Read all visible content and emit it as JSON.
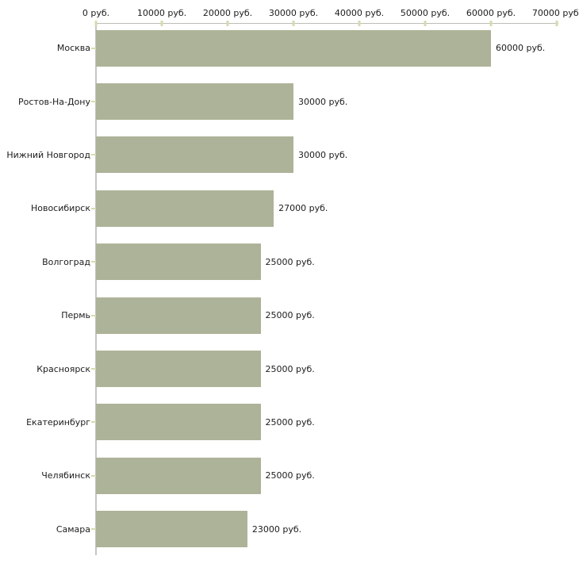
{
  "chart_data": {
    "type": "bar",
    "orientation": "horizontal",
    "title": "",
    "xlabel": "",
    "ylabel": "",
    "categories": [
      "Москва",
      "Ростов-На-Дону",
      "Нижний Новгород",
      "Новосибирск",
      "Волгоград",
      "Пермь",
      "Красноярск",
      "Екатеринбург",
      "Челябинск",
      "Самара"
    ],
    "values": [
      60000,
      30000,
      30000,
      27000,
      25000,
      25000,
      25000,
      25000,
      25000,
      23000
    ],
    "value_labels": [
      "60000 руб.",
      "30000 руб.",
      "30000 руб.",
      "27000 руб.",
      "25000 руб.",
      "25000 руб.",
      "25000 руб.",
      "25000 руб.",
      "25000 руб.",
      "23000 руб."
    ],
    "x_tick_values": [
      0,
      10000,
      20000,
      30000,
      40000,
      50000,
      60000,
      70000
    ],
    "x_tick_labels": [
      "0 руб.",
      "10000 руб.",
      "20000 руб.",
      "30000 руб.",
      "40000 руб.",
      "50000 руб.",
      "60000 руб.",
      "70000 руб."
    ],
    "xlim": [
      0,
      70000
    ],
    "grid": false,
    "legend": "none",
    "colors": {
      "bar_fill": "#adb398",
      "axis_line": "#c6c6c1",
      "tick_mark": "#d8dab0",
      "text": "#1c1c1c",
      "background": "#ffffff"
    }
  }
}
